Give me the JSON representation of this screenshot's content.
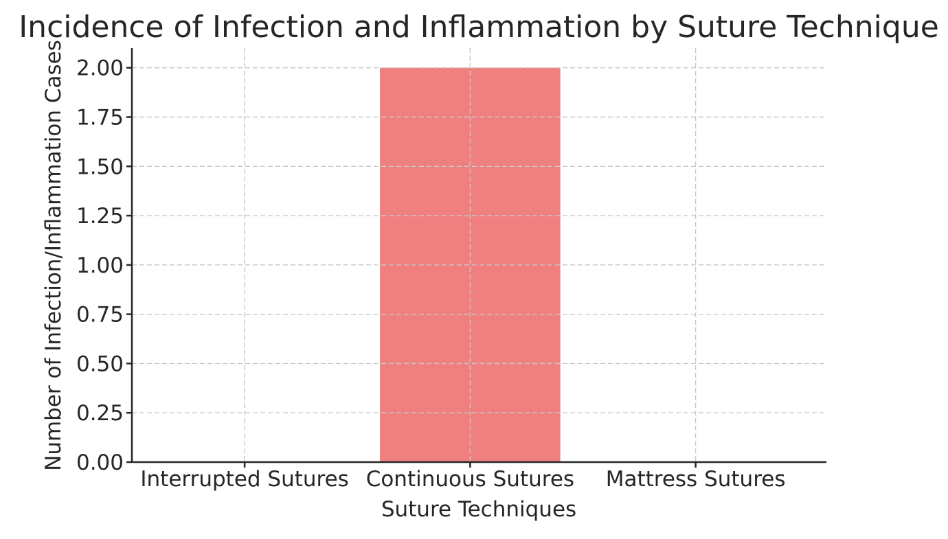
{
  "chart_data": {
    "type": "bar",
    "title": "Incidence of Infection and Inflammation by Suture Technique",
    "xlabel": "Suture Techniques",
    "ylabel": "Number of Infection/Inflammation Cases",
    "categories": [
      "Interrupted Sutures",
      "Continuous Sutures",
      "Mattress Sutures"
    ],
    "values": [
      0,
      2,
      0
    ],
    "ylim": [
      0,
      2.1
    ],
    "yticks": [
      "0.00",
      "0.25",
      "0.50",
      "0.75",
      "1.00",
      "1.25",
      "1.50",
      "1.75",
      "2.00"
    ],
    "bar_color": "#f08080",
    "grid": true,
    "legend": false
  }
}
